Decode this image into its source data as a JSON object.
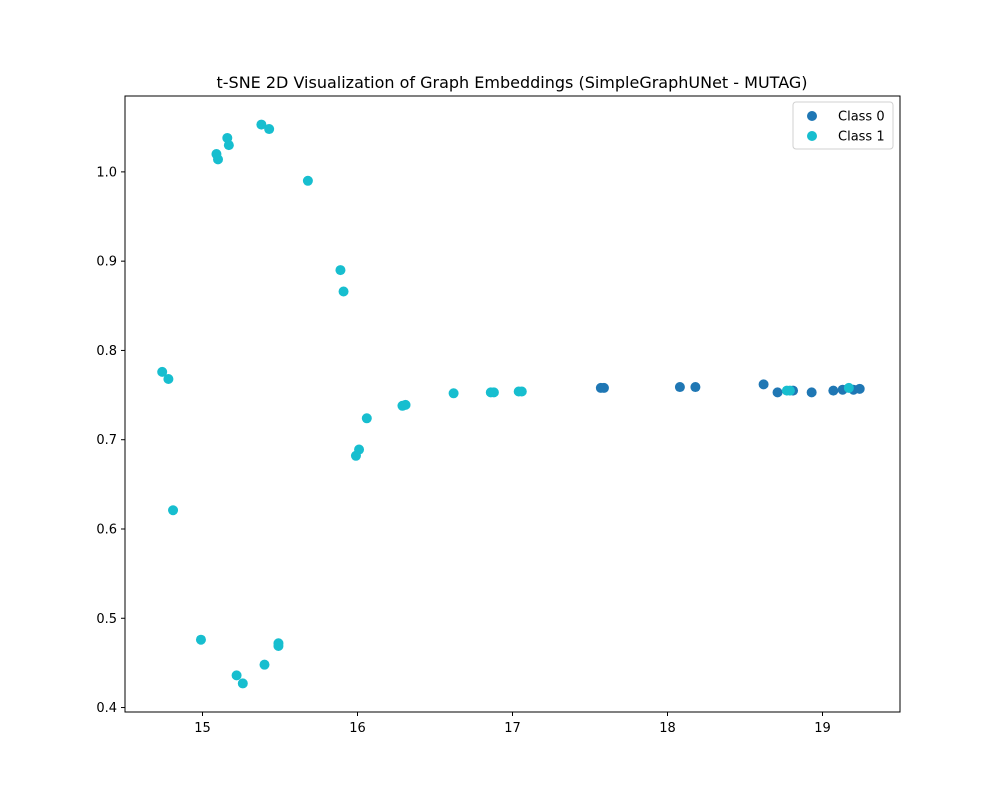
{
  "chart_data": {
    "type": "scatter",
    "title": "t-SNE 2D Visualization of Graph Embeddings (SimpleGraphUNet - MUTAG)",
    "xlabel": "",
    "ylabel": "",
    "xlim": [
      14.5,
      19.5
    ],
    "ylim": [
      0.395,
      1.085
    ],
    "xticks": [
      15,
      16,
      17,
      18,
      19
    ],
    "xtick_labels": [
      "15",
      "16",
      "17",
      "18",
      "19"
    ],
    "yticks": [
      0.4,
      0.5,
      0.6,
      0.7,
      0.8,
      0.9,
      1.0
    ],
    "ytick_labels": [
      "0.4",
      "0.5",
      "0.6",
      "0.7",
      "0.8",
      "0.9",
      "1.0"
    ],
    "grid": false,
    "legend_position": "top-right",
    "series": [
      {
        "name": "Class 0",
        "color": "#1f77b4",
        "points": [
          [
            17.57,
            0.758
          ],
          [
            17.59,
            0.758
          ],
          [
            18.08,
            0.759
          ],
          [
            18.18,
            0.759
          ],
          [
            18.62,
            0.762
          ],
          [
            18.71,
            0.753
          ],
          [
            18.81,
            0.755
          ],
          [
            18.93,
            0.753
          ],
          [
            19.07,
            0.755
          ],
          [
            19.13,
            0.756
          ],
          [
            19.2,
            0.756
          ],
          [
            19.24,
            0.757
          ]
        ]
      },
      {
        "name": "Class 1",
        "color": "#17becf",
        "points": [
          [
            15.09,
            1.02
          ],
          [
            15.1,
            1.014
          ],
          [
            15.16,
            1.038
          ],
          [
            15.17,
            1.03
          ],
          [
            15.38,
            1.053
          ],
          [
            15.43,
            1.048
          ],
          [
            15.68,
            0.99
          ],
          [
            15.89,
            0.89
          ],
          [
            15.91,
            0.866
          ],
          [
            14.74,
            0.776
          ],
          [
            14.78,
            0.768
          ],
          [
            14.81,
            0.621
          ],
          [
            15.99,
            0.682
          ],
          [
            16.01,
            0.689
          ],
          [
            16.06,
            0.724
          ],
          [
            16.29,
            0.738
          ],
          [
            16.31,
            0.739
          ],
          [
            16.62,
            0.752
          ],
          [
            16.86,
            0.753
          ],
          [
            16.88,
            0.753
          ],
          [
            17.04,
            0.754
          ],
          [
            17.06,
            0.754
          ],
          [
            18.77,
            0.755
          ],
          [
            18.79,
            0.755
          ],
          [
            19.17,
            0.758
          ],
          [
            14.99,
            0.476
          ],
          [
            15.22,
            0.436
          ],
          [
            15.26,
            0.427
          ],
          [
            15.4,
            0.448
          ],
          [
            15.49,
            0.472
          ],
          [
            15.49,
            0.469
          ]
        ]
      }
    ]
  }
}
